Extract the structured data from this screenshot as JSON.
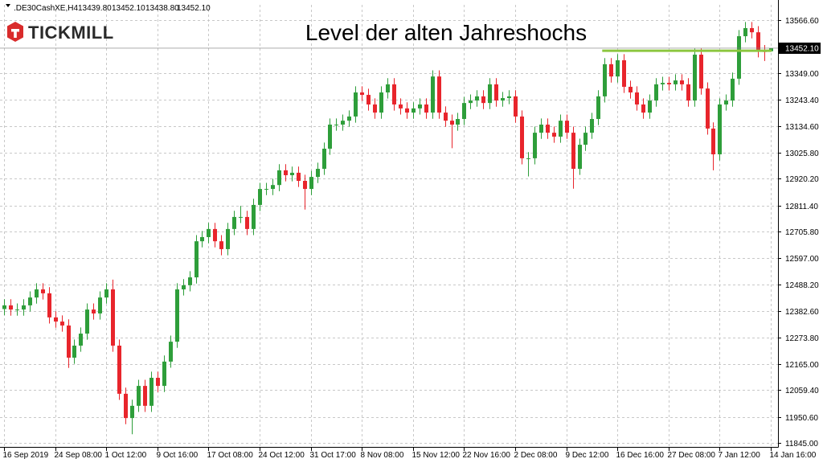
{
  "header": {
    "symbol": ".DE30CashXE,H4",
    "ohlc": [
      "13439.80",
      "13452.10",
      "13438.80",
      "13452.10"
    ]
  },
  "logo": "TICKMILL",
  "chart_data": {
    "type": "candlestick",
    "annotation": "Level der alten Jahreshochs",
    "annotation_color": "#8cc63f",
    "level_line": {
      "value": 13442,
      "start": 94
    },
    "current_price": {
      "value": 13452.1,
      "label": "13452.10"
    },
    "up_color": "#2e9e3a",
    "down_color": "#e8252c",
    "grid": true,
    "categories": [
      "16 Sep 2019",
      null,
      null,
      null,
      null,
      null,
      null,
      null,
      "24 Sep 08:00",
      null,
      null,
      null,
      null,
      null,
      null,
      null,
      "1 Oct 12:00",
      null,
      null,
      null,
      null,
      null,
      null,
      null,
      "9 Oct 16:00",
      null,
      null,
      null,
      null,
      null,
      null,
      null,
      "17 Oct 08:00",
      null,
      null,
      null,
      null,
      null,
      null,
      null,
      "24 Oct 12:00",
      null,
      null,
      null,
      null,
      null,
      null,
      null,
      "31 Oct 17:00",
      null,
      null,
      null,
      null,
      null,
      null,
      null,
      "8 Nov 08:00",
      null,
      null,
      null,
      null,
      null,
      null,
      null,
      "15 Nov 12:00",
      null,
      null,
      null,
      null,
      null,
      null,
      null,
      "22 Nov 16:00",
      null,
      null,
      null,
      null,
      null,
      null,
      null,
      "2 Dec 08:00",
      null,
      null,
      null,
      null,
      null,
      null,
      null,
      "9 Dec 12:00",
      null,
      null,
      null,
      null,
      null,
      null,
      null,
      "16 Dec 16:00",
      null,
      null,
      null,
      null,
      null,
      null,
      null,
      "27 Dec 08:00",
      null,
      null,
      null,
      null,
      null,
      null,
      null,
      "7 Jan 12:00",
      null,
      null,
      null,
      null,
      null,
      null,
      null,
      "14 Jan 16:00"
    ],
    "open": [
      12390,
      12405,
      12388,
      12388,
      12405,
      12437,
      12470,
      12454,
      12356,
      12339,
      12323,
      12192,
      12241,
      12290,
      12388,
      12372,
      12437,
      12470,
      12241,
      12045,
      11946,
      11996,
      12077,
      11996,
      12110,
      12077,
      12176,
      12257,
      12470,
      12487,
      12519,
      12666,
      12683,
      12716,
      12666,
      12634,
      12716,
      12765,
      12765,
      12716,
      12814,
      12879,
      12879,
      12895,
      12955,
      12935,
      12945,
      12912,
      12879,
      12928,
      12961,
      13043,
      13141,
      13141,
      13157,
      13174,
      13272,
      13262,
      13223,
      13190,
      13272,
      13305,
      13223,
      13207,
      13190,
      13207,
      13223,
      13190,
      13337,
      13190,
      13157,
      13141,
      13164,
      13229,
      13239,
      13256,
      13229,
      13305,
      13239,
      13249,
      13256,
      13174,
      13004,
      13004,
      13108,
      13141,
      13108,
      13092,
      13157,
      13108,
      12961,
      13059,
      13108,
      13164,
      13256,
      13387,
      13337,
      13403,
      13295,
      13272,
      13223,
      13190,
      13239,
      13305,
      13311,
      13305,
      13321,
      13305,
      13239,
      13426,
      13288,
      13125,
      13020,
      13223,
      13239,
      13328,
      13501,
      13534,
      13517,
      13440,
      13439.8
    ],
    "high": [
      12430,
      12430,
      12413,
      12430,
      12462,
      12495,
      12495,
      12479,
      12381,
      12364,
      12348,
      12266,
      12315,
      12413,
      12413,
      12462,
      12495,
      12510,
      12266,
      12070,
      12021,
      12102,
      12102,
      12135,
      12135,
      12201,
      12282,
      12495,
      12512,
      12544,
      12691,
      12708,
      12741,
      12741,
      12691,
      12741,
      12790,
      12810,
      12790,
      12839,
      12904,
      12904,
      12920,
      12980,
      12980,
      12970,
      12970,
      12937,
      12953,
      12986,
      13068,
      13166,
      13166,
      13182,
      13199,
      13297,
      13297,
      13287,
      13248,
      13297,
      13330,
      13330,
      13248,
      13232,
      13232,
      13248,
      13248,
      13362,
      13362,
      13215,
      13182,
      13189,
      13254,
      13264,
      13281,
      13281,
      13330,
      13330,
      13274,
      13281,
      13281,
      13199,
      13029,
      13133,
      13166,
      13166,
      13133,
      13182,
      13182,
      13133,
      13084,
      13133,
      13189,
      13281,
      13412,
      13412,
      13428,
      13428,
      13320,
      13297,
      13248,
      13264,
      13330,
      13336,
      13336,
      13346,
      13346,
      13330,
      13451,
      13451,
      13313,
      13150,
      13248,
      13264,
      13353,
      13526,
      13559,
      13559,
      13542,
      13465,
      13452.1
    ],
    "low": [
      12365,
      12363,
      12363,
      12363,
      12380,
      12412,
      12429,
      12331,
      12314,
      12298,
      12150,
      12167,
      12216,
      12265,
      12347,
      12347,
      12412,
      12216,
      12020,
      11921,
      11880,
      11971,
      11971,
      11971,
      12052,
      12052,
      12151,
      12232,
      12445,
      12462,
      12494,
      12641,
      12658,
      12641,
      12609,
      12609,
      12691,
      12740,
      12691,
      12691,
      12789,
      12854,
      12854,
      12870,
      12910,
      12910,
      12887,
      12795,
      12854,
      12903,
      12936,
      13018,
      13116,
      13116,
      13132,
      13149,
      13237,
      13198,
      13165,
      13165,
      13247,
      13198,
      13182,
      13165,
      13165,
      13182,
      13165,
      13165,
      13165,
      13132,
      13045,
      13116,
      13139,
      13204,
      13214,
      13204,
      13204,
      13214,
      13214,
      13224,
      13149,
      12979,
      12930,
      12979,
      13083,
      13083,
      13067,
      13067,
      13083,
      12880,
      12936,
      13034,
      13083,
      13139,
      13231,
      13312,
      13312,
      13270,
      13247,
      13198,
      13165,
      13165,
      13214,
      13280,
      13280,
      13280,
      13280,
      13214,
      13214,
      13263,
      13100,
      12955,
      12995,
      13198,
      13214,
      13303,
      13476,
      13492,
      13415,
      13400,
      13438.8
    ],
    "close": [
      12405,
      12388,
      12388,
      12405,
      12437,
      12470,
      12454,
      12356,
      12339,
      12323,
      12192,
      12241,
      12290,
      12388,
      12372,
      12437,
      12470,
      12241,
      12045,
      11946,
      11996,
      12077,
      11996,
      12110,
      12077,
      12176,
      12257,
      12470,
      12487,
      12519,
      12666,
      12683,
      12716,
      12666,
      12634,
      12716,
      12765,
      12765,
      12716,
      12814,
      12879,
      12879,
      12895,
      12955,
      12935,
      12945,
      12912,
      12879,
      12928,
      12961,
      13043,
      13141,
      13141,
      13157,
      13174,
      13272,
      13262,
      13223,
      13190,
      13272,
      13305,
      13223,
      13207,
      13190,
      13207,
      13223,
      13190,
      13337,
      13190,
      13157,
      13141,
      13164,
      13229,
      13239,
      13256,
      13229,
      13305,
      13239,
      13249,
      13256,
      13174,
      13004,
      13004,
      13108,
      13141,
      13108,
      13092,
      13157,
      13108,
      12961,
      13059,
      13108,
      13164,
      13256,
      13387,
      13337,
      13403,
      13295,
      13272,
      13223,
      13190,
      13239,
      13305,
      13311,
      13305,
      13321,
      13305,
      13239,
      13426,
      13288,
      13125,
      13020,
      13223,
      13239,
      13328,
      13501,
      13534,
      13517,
      13440,
      13439.8,
      13452.1
    ],
    "ylim": [
      11828.6,
      13628.8
    ],
    "yticks": [
      {
        "value": 13566.6,
        "label": "13566.60"
      },
      {
        "value": 13349,
        "label": "13349.00"
      },
      {
        "value": 13243.4,
        "label": "13243.40"
      },
      {
        "value": 13134.6,
        "label": "13134.60"
      },
      {
        "value": 13025.8,
        "label": "13025.80"
      },
      {
        "value": 12920.2,
        "label": "12920.20"
      },
      {
        "value": 12811.4,
        "label": "12811.40"
      },
      {
        "value": 12705.8,
        "label": "12705.80"
      },
      {
        "value": 12597,
        "label": "12597.00"
      },
      {
        "value": 12488.2,
        "label": "12488.20"
      },
      {
        "value": 12382.6,
        "label": "12382.60"
      },
      {
        "value": 12273.8,
        "label": "12273.80"
      },
      {
        "value": 12165,
        "label": "12165.00"
      },
      {
        "value": 12059.4,
        "label": "12059.40"
      },
      {
        "value": 11950.6,
        "label": "11950.60"
      },
      {
        "value": 11845,
        "label": "11845.00"
      }
    ]
  }
}
